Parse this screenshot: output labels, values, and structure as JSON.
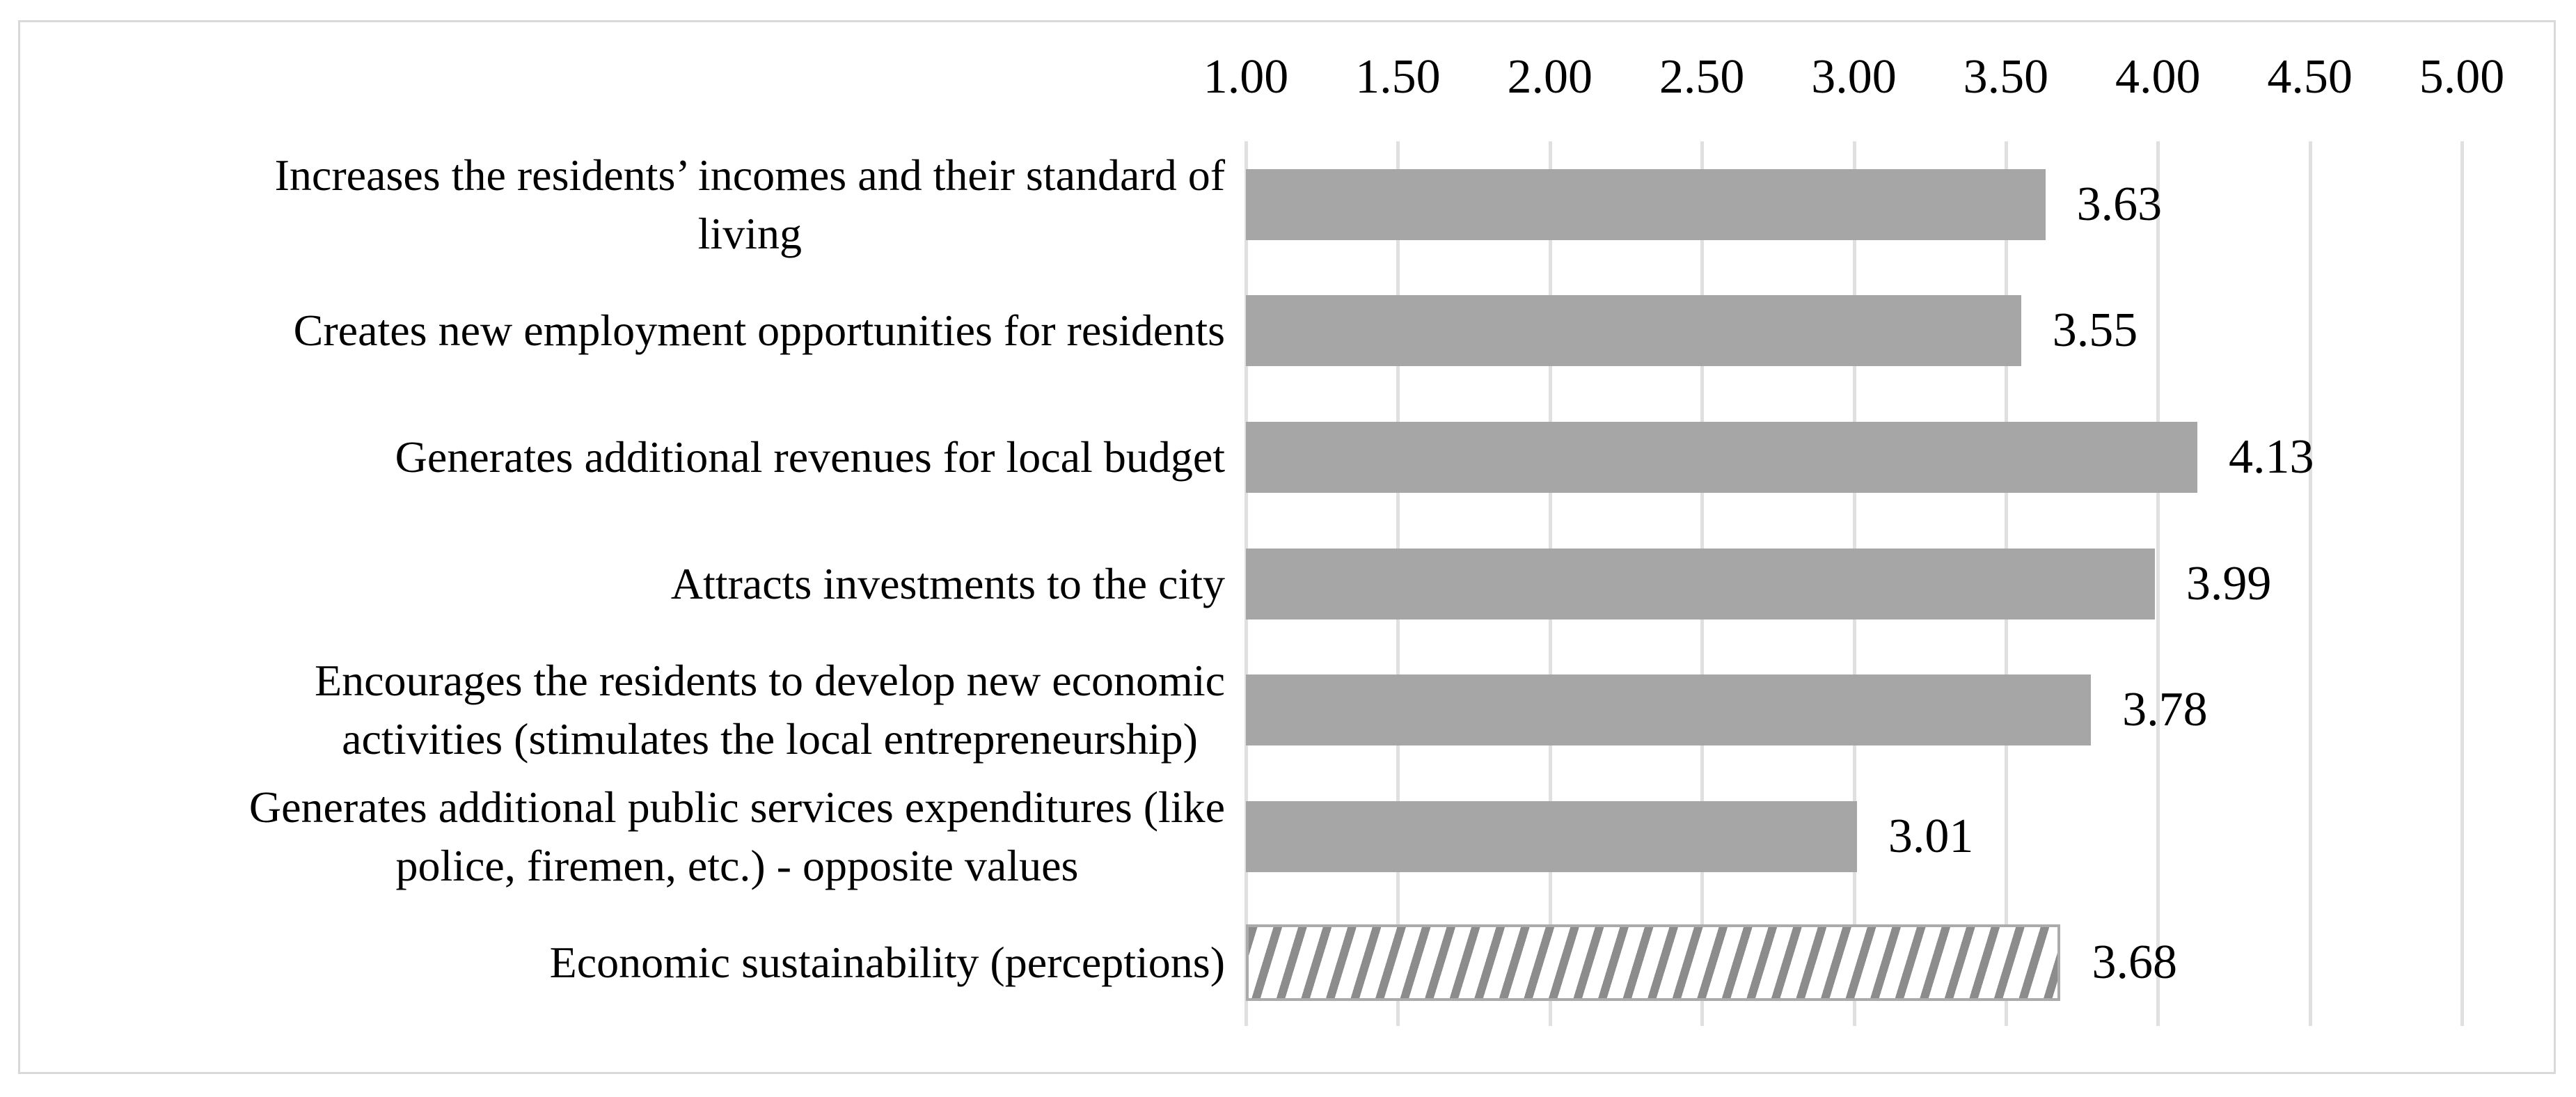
{
  "chart_data": {
    "type": "bar",
    "orientation": "horizontal",
    "legend": "none",
    "grid": true,
    "categories": [
      "Increases the residents’ incomes and their standard of living",
      "Creates new employment opportunities for residents",
      "Generates additional revenues for local budget",
      "Attracts investments to the city",
      "Encourages the residents to develop new economic activities (stimulates the local entrepreneurship)",
      "Generates additional public services expenditures (like police, firemen, etc.) - opposite values",
      "Economic sustainability (perceptions)"
    ],
    "categories_wrapped": [
      "Increases the residents’ incomes and their standard of\nliving",
      "Creates new employment opportunities for residents",
      "Generates additional revenues for local budget",
      "Attracts investments to the city",
      "Encourages the residents to develop new economic\nactivities (stimulates the local entrepreneurship)",
      "Generates additional public services expenditures (like\npolice, firemen, etc.) - opposite values",
      "Economic sustainability (perceptions)"
    ],
    "values": [
      3.63,
      3.55,
      4.13,
      3.99,
      3.78,
      3.01,
      3.68
    ],
    "data_labels": [
      "3.63",
      "3.55",
      "4.13",
      "3.99",
      "3.78",
      "3.01",
      "3.68"
    ],
    "bar_styles": [
      "solid",
      "solid",
      "solid",
      "solid",
      "solid",
      "solid",
      "hatched"
    ],
    "x_axis": {
      "position": "top",
      "min": 1.0,
      "max": 5.0,
      "step": 0.5,
      "tick_labels": [
        "1.00",
        "1.50",
        "2.00",
        "2.50",
        "3.00",
        "3.50",
        "4.00",
        "4.50",
        "5.00"
      ]
    },
    "colors": {
      "bar_fill": "#a6a6a6",
      "hatch_stripe": "#8c8c8c",
      "hatch_background": "#ffffff",
      "hatch_border": "#ababab",
      "gridline": "#e0e0e0",
      "frame_border": "#d9d9d9",
      "text": "#000000",
      "background": "#ffffff"
    }
  }
}
